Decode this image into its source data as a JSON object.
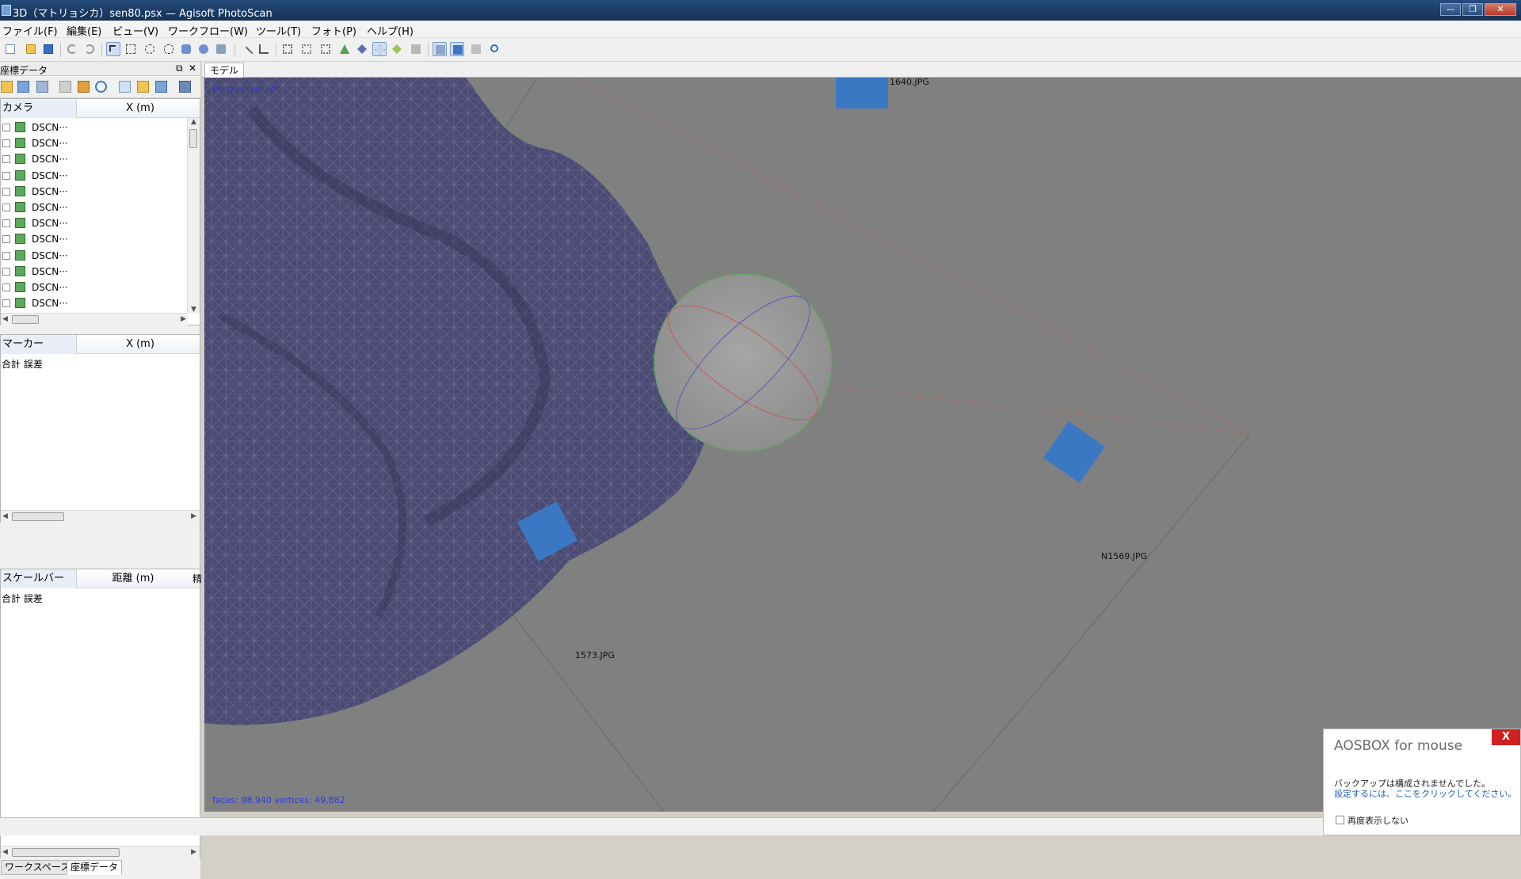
{
  "window": {
    "title": "3D（マトリョシカ）sen80.psx — Agisoft PhotoScan",
    "minimize": "—",
    "restore": "❐",
    "close": "✕"
  },
  "menu": [
    "ファイル(F)",
    "編集(E)",
    "ビュー(V)",
    "ワークフロー(W)",
    "ツール(T)",
    "フォト(P)",
    "ヘルプ(H)"
  ],
  "panel": {
    "title": "座標データ",
    "float_glyph": "⧉",
    "close_glyph": "✕",
    "cameras": {
      "col1": "カメラ",
      "col2": "X (m)",
      "rows": [
        "DSCN···",
        "DSCN···",
        "DSCN···",
        "DSCN···",
        "DSCN···",
        "DSCN···",
        "DSCN···",
        "DSCN···",
        "DSCN···",
        "DSCN···",
        "DSCN···",
        "DSCN···"
      ]
    },
    "markers": {
      "col1": "マーカー",
      "col2": "X (m)",
      "summary": "合計 誤差"
    },
    "scalebars": {
      "col1": "スケールバー",
      "col2": "距離 (m)",
      "col3": "精",
      "summary": "合計 誤差"
    },
    "tabs": {
      "workspace": "ワークスペース",
      "reference": "座標データ"
    }
  },
  "view": {
    "tab": "モデル",
    "projection": "Perspective 30°",
    "stats": "faces: 98,940 vertices: 49,882",
    "camera_labels": [
      "1640.JPG",
      "N1569.JPG",
      "1573.JPG"
    ]
  },
  "notification": {
    "title": "AOSBOX for mouse",
    "close": "X",
    "message": "バックアップは構成されませんでした。",
    "link": "設定するには、ここをクリックしてください。",
    "checkbox": "再度表示しない"
  },
  "colors": {
    "titlebar": "#1b3a63",
    "viewport_bg": "#808080",
    "mesh": "#4a4a72",
    "camera_plane": "#3b78c4",
    "link": "#1a5fb4"
  }
}
